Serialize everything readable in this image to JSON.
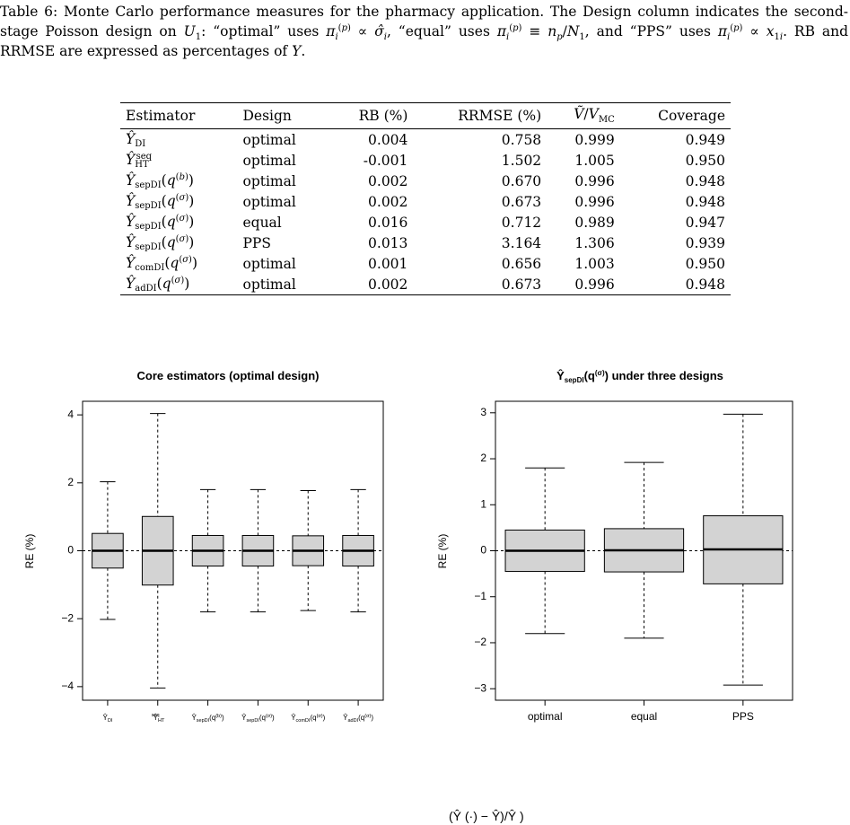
{
  "caption": {
    "prefix": "Table 6:",
    "text_1": "Monte Carlo performance measures for the pharmacy application. The Design column indicates the second-stage Poisson design on",
    "text_2": ": “optimal” uses",
    "text_3": ", “equal” uses",
    "text_4": ", and “PPS” uses",
    "text_5": ". RB and RRMSE are expressed as percentages of"
  },
  "table": {
    "headers": [
      "Estimator",
      "Design",
      "RB (%)",
      "RRMSE (%)",
      "V/V_MC",
      "Coverage"
    ],
    "rows": [
      {
        "estimator": "Ŷ_DI",
        "design": "optimal",
        "rb": "0.004",
        "rrmse": "0.758",
        "vratio": "0.999",
        "coverage": "0.949"
      },
      {
        "estimator": "Ŷ_HT^seq",
        "design": "optimal",
        "rb": "-0.001",
        "rrmse": "1.502",
        "vratio": "1.005",
        "coverage": "0.950"
      },
      {
        "estimator": "Ŷ_sepDI(q^(b))",
        "design": "optimal",
        "rb": "0.002",
        "rrmse": "0.670",
        "vratio": "0.996",
        "coverage": "0.948"
      },
      {
        "estimator": "Ŷ_sepDI(q^(σ))",
        "design": "optimal",
        "rb": "0.002",
        "rrmse": "0.673",
        "vratio": "0.996",
        "coverage": "0.948"
      },
      {
        "estimator": "Ŷ_sepDI(q^(σ))",
        "design": "equal",
        "rb": "0.016",
        "rrmse": "0.712",
        "vratio": "0.989",
        "coverage": "0.947"
      },
      {
        "estimator": "Ŷ_sepDI(q^(σ))",
        "design": "PPS",
        "rb": "0.013",
        "rrmse": "3.164",
        "vratio": "1.306",
        "coverage": "0.939"
      },
      {
        "estimator": "Ŷ_comDI(q^(σ))",
        "design": "optimal",
        "rb": "0.001",
        "rrmse": "0.656",
        "vratio": "1.003",
        "coverage": "0.950"
      },
      {
        "estimator": "Ŷ_adDI(q^(σ))",
        "design": "optimal",
        "rb": "0.002",
        "rrmse": "0.673",
        "vratio": "0.996",
        "coverage": "0.948"
      }
    ]
  },
  "chart_data": [
    {
      "type": "box",
      "title": "Core estimators (optimal design)",
      "ylabel": "RE (%)",
      "ylim": [
        -4.4,
        4.4
      ],
      "yticks": [
        -4,
        -2,
        0,
        2,
        4
      ],
      "reference_line": 0,
      "categories": [
        "Ŷ_DI",
        "Ŷ_HT^seq",
        "Ŷ_sepDI(q^(b))",
        "Ŷ_sepDI(q^(σ))",
        "Ŷ_comDI(q^(σ))",
        "Ŷ_adDI(q^(σ))"
      ],
      "boxes": [
        {
          "min": -2.02,
          "q1": -0.51,
          "median": 0.0,
          "q3": 0.51,
          "max": 2.03
        },
        {
          "min": -4.04,
          "q1": -1.01,
          "median": 0.0,
          "q3": 1.01,
          "max": 4.04
        },
        {
          "min": -1.8,
          "q1": -0.45,
          "median": 0.0,
          "q3": 0.45,
          "max": 1.8
        },
        {
          "min": -1.8,
          "q1": -0.45,
          "median": 0.0,
          "q3": 0.45,
          "max": 1.8
        },
        {
          "min": -1.76,
          "q1": -0.44,
          "median": 0.0,
          "q3": 0.44,
          "max": 1.77
        },
        {
          "min": -1.8,
          "q1": -0.45,
          "median": 0.0,
          "q3": 0.45,
          "max": 1.8
        }
      ]
    },
    {
      "type": "box",
      "title": "Ŷ_sepDI(q^(σ)) under three designs",
      "ylabel": "RE (%)",
      "ylim": [
        -3.25,
        3.25
      ],
      "yticks": [
        -3,
        -2,
        -1,
        0,
        1,
        2,
        3
      ],
      "reference_line": 0,
      "categories": [
        "optimal",
        "equal",
        "PPS"
      ],
      "boxes": [
        {
          "min": -1.8,
          "q1": -0.45,
          "median": 0.0,
          "q3": 0.45,
          "max": 1.8
        },
        {
          "min": -1.9,
          "q1": -0.46,
          "median": 0.01,
          "q3": 0.48,
          "max": 1.92
        },
        {
          "min": -2.92,
          "q1": -0.72,
          "median": 0.03,
          "q3": 0.76,
          "max": 2.97
        }
      ]
    }
  ],
  "footer": {
    "fragment": "(Ŷ   (·) − Ŷ)/Ŷ     )"
  }
}
